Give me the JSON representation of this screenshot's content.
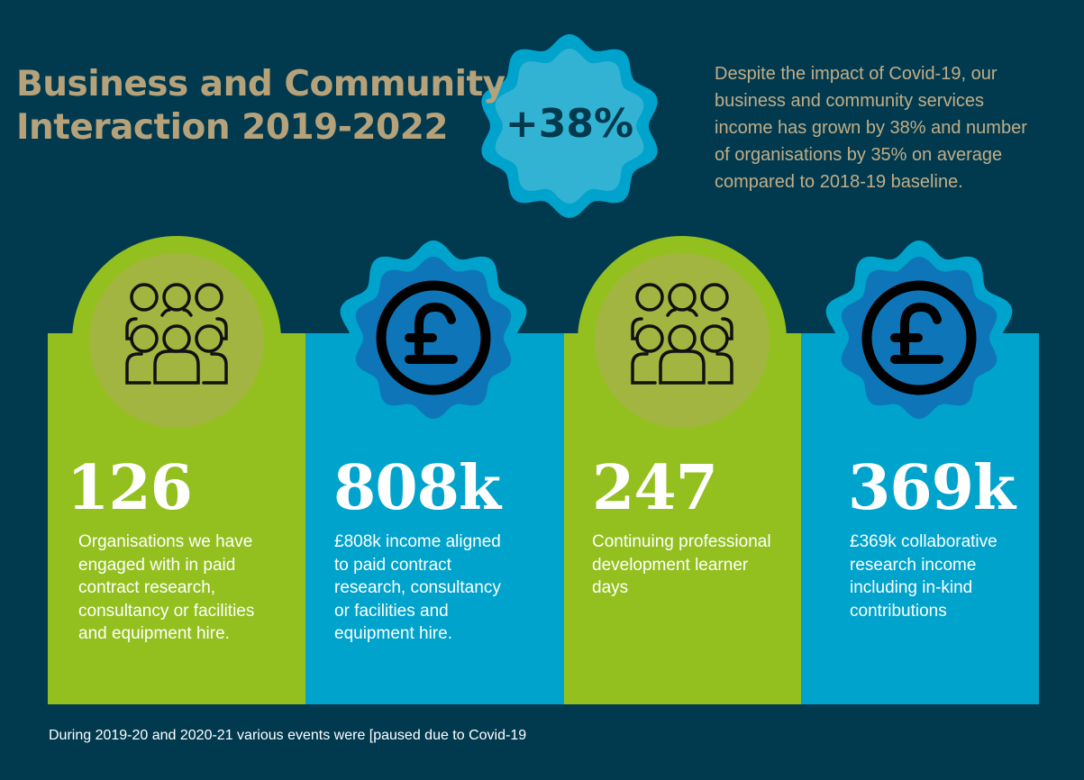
{
  "title_lines": [
    "Business and Community",
    "Interaction 2019-2022"
  ],
  "badge": {
    "value": "+38%"
  },
  "intro_lines": [
    "Despite the impact of Covid-19, our",
    "business and community services",
    "income has grown by 38% and number",
    "of organisations by 35% on average",
    "compared to 2018-19 baseline."
  ],
  "colors": {
    "background": "#013a4f",
    "green": "#93c01f",
    "green_inner": "#a2b540",
    "blue": "#00a3cc",
    "blue_inner": "#0e76b8",
    "badge_inner": "#33b3d4",
    "title": "#b5a27a"
  },
  "stats": [
    {
      "icon": "people-group-icon",
      "value": "126",
      "lines": [
        "Organisations we have",
        "engaged with in paid",
        "contract research,",
        "consultancy or facilities",
        "and equipment hire."
      ]
    },
    {
      "icon": "pound-coin-icon",
      "value": "808k",
      "lines": [
        "£808k income aligned",
        "to paid contract",
        "research, consultancy",
        "or facilities and",
        "equipment hire."
      ]
    },
    {
      "icon": "people-group-icon",
      "value": "247",
      "lines": [
        "Continuing professional",
        "development learner",
        "days"
      ]
    },
    {
      "icon": "pound-coin-icon",
      "value": "369k",
      "lines": [
        "£369k collaborative",
        "research income",
        "including in-kind",
        "contributions"
      ]
    }
  ],
  "footnote": "During 2019-20 and 2020-21 various events were [paused due to Covid-19"
}
